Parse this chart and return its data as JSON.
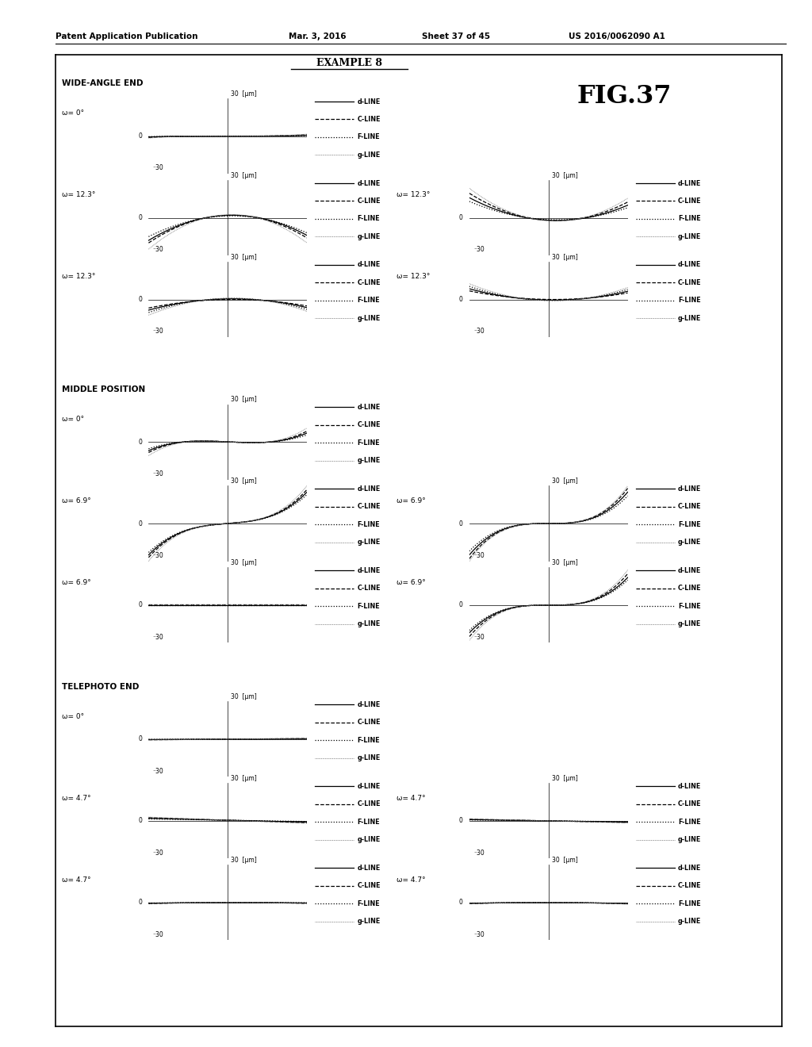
{
  "title_header": "Patent Application Publication",
  "title_date": "Mar. 3, 2016",
  "title_sheet": "Sheet 37 of 45",
  "title_patent": "US 2016/0062090 A1",
  "example_title": "EXAMPLE 8",
  "fig_label": "FIG.37",
  "background_color": "#ffffff",
  "legend_items": [
    "d-LINE",
    "C-LINE",
    "F-LINE",
    "g-LINE"
  ],
  "sections": [
    {
      "name": "WIDE-ANGLE END",
      "rows": [
        {
          "omega": "ω= 0°",
          "left_type": "spherical_wide",
          "right_type": null
        },
        {
          "omega": "ω= 12.3°",
          "left_type": "coma_wide_L",
          "right_type": "coma_wide_R"
        },
        {
          "omega": "ω= 12.3°",
          "left_type": "astig_wide_L",
          "right_type": "astig_wide_R"
        }
      ]
    },
    {
      "name": "MIDDLE POSITION",
      "rows": [
        {
          "omega": "ω= 0°",
          "left_type": "spherical_mid",
          "right_type": null
        },
        {
          "omega": "ω= 6.9°",
          "left_type": "coma_mid_L",
          "right_type": "coma_mid_R"
        },
        {
          "omega": "ω= 6.9°",
          "left_type": "astig_mid_L",
          "right_type": "astig_mid_R"
        }
      ]
    },
    {
      "name": "TELEPHOTO END",
      "rows": [
        {
          "omega": "ω= 0°",
          "left_type": "spherical_tele",
          "right_type": null
        },
        {
          "omega": "ω= 4.7°",
          "left_type": "coma_tele_L",
          "right_type": "coma_tele_R"
        },
        {
          "omega": "ω= 4.7°",
          "left_type": "astig_tele_L",
          "right_type": "astig_tele_R"
        }
      ]
    }
  ]
}
